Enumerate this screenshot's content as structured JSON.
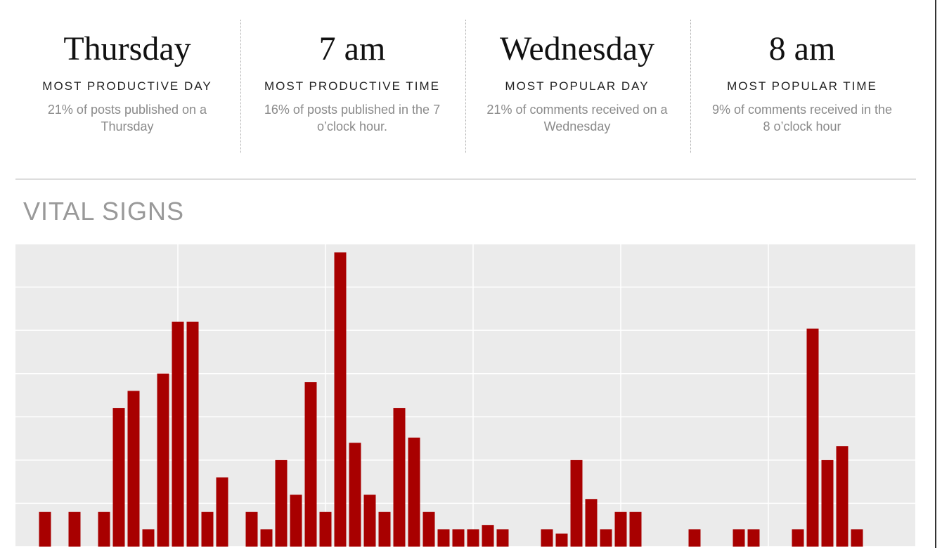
{
  "stats": [
    {
      "title": "Thursday",
      "label": "MOST PRODUCTIVE DAY",
      "description": "21% of posts published on a Thursday"
    },
    {
      "title": "7 am",
      "label": "MOST PRODUCTIVE TIME",
      "description": "16% of posts published in the 7 o’clock hour."
    },
    {
      "title": "Wednesday",
      "label": "MOST POPULAR DAY",
      "description": "21% of comments received on a Wednesday"
    },
    {
      "title": "8 am",
      "label": "MOST POPULAR TIME",
      "description": "9% of comments received in the 8 o’clock hour"
    }
  ],
  "section_title": "VITAL SIGNS",
  "chart_data": {
    "type": "bar",
    "categories": [
      null,
      null,
      null,
      null,
      null,
      null,
      null,
      null,
      null,
      null,
      null,
      null,
      null,
      null,
      null,
      null,
      null,
      null,
      null,
      null,
      null,
      null,
      null,
      null,
      null,
      null,
      null,
      null,
      null,
      null,
      null,
      null,
      null,
      null,
      null,
      null,
      null,
      null,
      null,
      null,
      null,
      null,
      null,
      null,
      null,
      null,
      null,
      null,
      null,
      null,
      null,
      null,
      null,
      null,
      null,
      null,
      null,
      null,
      null,
      null,
      null
    ],
    "values": [
      0,
      0,
      2,
      0,
      2,
      0,
      2,
      8,
      9,
      1,
      10,
      13,
      13,
      2,
      4,
      0,
      2,
      1,
      5,
      3,
      9.5,
      2,
      17,
      6,
      3,
      2,
      8,
      6.3,
      2,
      1,
      1,
      1,
      1.25,
      1,
      0,
      0,
      1,
      0.75,
      5,
      2.75,
      1,
      2,
      2,
      0,
      0,
      0,
      1,
      0,
      0,
      1,
      1,
      0,
      0,
      1,
      12.6,
      5,
      5.8,
      1,
      0,
      0,
      0
    ],
    "color": "#a80000",
    "ylim": [
      0,
      17.5
    ],
    "yticks": [
      0,
      2.5,
      5,
      7.5,
      10,
      12.5,
      15,
      17.5
    ],
    "grid": true
  }
}
